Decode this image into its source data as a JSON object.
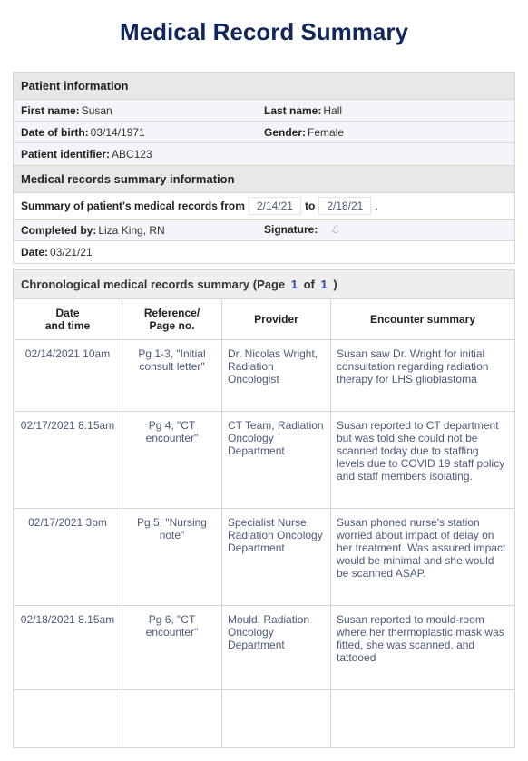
{
  "title": "Medical Record Summary",
  "sections": {
    "patient_info": {
      "header": "Patient information",
      "first_name_label": "First name:",
      "first_name": "Susan",
      "last_name_label": "Last name:",
      "last_name": "Hall",
      "dob_label": "Date of birth:",
      "dob": "03/14/1971",
      "gender_label": "Gender:",
      "gender": "Female",
      "pid_label": "Patient identifier:",
      "pid": "ABC123"
    },
    "summary_info": {
      "header": "Medical records summary information",
      "range_label": "Summary of patient's medical records from",
      "range_from": "2/14/21",
      "range_to_label": "to",
      "range_to": "2/18/21",
      "range_end": ".",
      "completed_by_label": "Completed by:",
      "completed_by": "Liza King, RN",
      "signature_label": "Signature:",
      "signature": "ℒ",
      "date_label": "Date:",
      "date": "03/21/21"
    },
    "chrono": {
      "header_prefix": "Chronological medical records summary (Page ",
      "page_cur": "1",
      "of": " of ",
      "page_total": "1",
      "header_suffix": " )",
      "columns": {
        "c1a": "Date",
        "c1b": "and time",
        "c2a": "Reference/",
        "c2b": "Page no.",
        "c3": "Provider",
        "c4": "Encounter summary"
      },
      "rows": [
        {
          "dt": "02/14/2021 10am",
          "ref": "Pg 1-3, \"Initial consult letter\"",
          "prov": "Dr. Nicolas Wright, Radiation Oncologist",
          "sum": "Susan saw Dr. Wright for initial consultation regarding radiation therapy for LHS glioblastoma"
        },
        {
          "dt": "02/17/2021 8.15am",
          "ref": "Pg 4, \"CT encounter\"",
          "prov": "CT Team, Radiation Oncology Department",
          "sum": "Susan reported to CT department but was told she could not be scanned today due to staffing levels due to COVID 19 staff policy and staff members isolating."
        },
        {
          "dt": "02/17/2021 3pm",
          "ref": "Pg 5, \"Nursing note\"",
          "prov": "Specialist Nurse, Radiation Oncology Department",
          "sum": "Susan phoned nurse's station worried about impact of delay on her treatment. Was assured impact would be minimal and she would be scanned ASAP."
        },
        {
          "dt": "02/18/2021 8.15am",
          "ref": "Pg 6, \"CT encounter\"",
          "prov": "Mould, Radiation Oncology Department",
          "sum": "Susan reported to mould-room where her thermoplastic mask was fitted, she was scanned, and tattooed"
        }
      ]
    }
  }
}
